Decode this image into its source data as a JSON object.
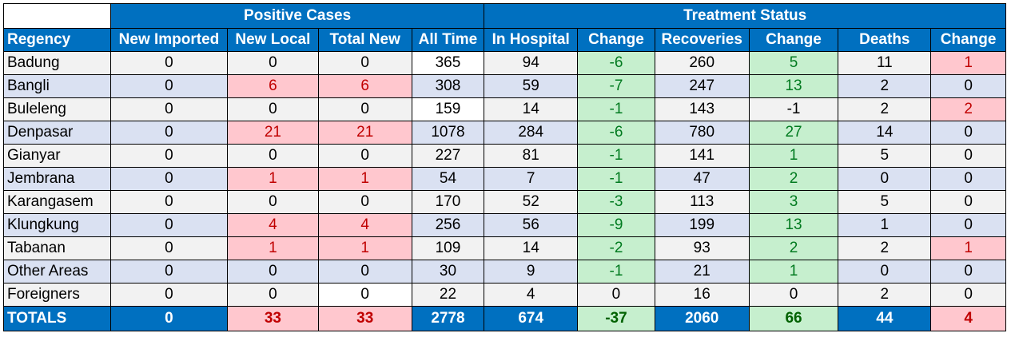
{
  "groups": {
    "positive": "Positive Cases",
    "treatment": "Treatment Status"
  },
  "columns": [
    "Regency",
    "New Imported",
    "New Local",
    "Total New",
    "All Time",
    "In Hospital",
    "Change",
    "Recoveries",
    "Change",
    "Deaths",
    "Change"
  ],
  "rows": [
    {
      "name": "Badung",
      "cells": [
        "0",
        "0",
        "0",
        "365",
        "94",
        "-6",
        "260",
        "5",
        "11",
        "1"
      ],
      "styles": [
        "",
        "",
        "",
        "white",
        "",
        "green",
        "",
        "green",
        "",
        "red"
      ]
    },
    {
      "name": "Bangli",
      "cells": [
        "0",
        "6",
        "6",
        "308",
        "59",
        "-7",
        "247",
        "13",
        "2",
        "0"
      ],
      "styles": [
        "",
        "red",
        "red",
        "",
        "",
        "green",
        "",
        "green",
        "",
        ""
      ]
    },
    {
      "name": "Buleleng",
      "cells": [
        "0",
        "0",
        "0",
        "159",
        "14",
        "-1",
        "143",
        "-1",
        "2",
        "2"
      ],
      "styles": [
        "",
        "",
        "",
        "white",
        "",
        "green",
        "",
        "",
        "",
        "red"
      ]
    },
    {
      "name": "Denpasar",
      "cells": [
        "0",
        "21",
        "21",
        "1078",
        "284",
        "-6",
        "780",
        "27",
        "14",
        "0"
      ],
      "styles": [
        "",
        "red",
        "red",
        "",
        "",
        "green",
        "",
        "green",
        "",
        ""
      ]
    },
    {
      "name": "Gianyar",
      "cells": [
        "0",
        "0",
        "0",
        "227",
        "81",
        "-1",
        "141",
        "1",
        "5",
        "0"
      ],
      "styles": [
        "",
        "",
        "",
        "",
        "",
        "green",
        "",
        "green",
        "",
        ""
      ]
    },
    {
      "name": "Jembrana",
      "cells": [
        "0",
        "1",
        "1",
        "54",
        "7",
        "-1",
        "47",
        "2",
        "0",
        "0"
      ],
      "styles": [
        "",
        "red",
        "red",
        "",
        "",
        "green",
        "",
        "green",
        "",
        ""
      ]
    },
    {
      "name": "Karangasem",
      "cells": [
        "0",
        "0",
        "0",
        "170",
        "52",
        "-3",
        "113",
        "3",
        "5",
        "0"
      ],
      "styles": [
        "",
        "",
        "",
        "",
        "",
        "green",
        "",
        "green",
        "",
        ""
      ]
    },
    {
      "name": "Klungkung",
      "cells": [
        "0",
        "4",
        "4",
        "256",
        "56",
        "-9",
        "199",
        "13",
        "1",
        "0"
      ],
      "styles": [
        "",
        "red",
        "red",
        "",
        "",
        "green",
        "",
        "green",
        "",
        ""
      ]
    },
    {
      "name": "Tabanan",
      "cells": [
        "0",
        "1",
        "1",
        "109",
        "14",
        "-2",
        "93",
        "2",
        "2",
        "1"
      ],
      "styles": [
        "",
        "red",
        "red",
        "",
        "",
        "green",
        "",
        "green",
        "",
        "red"
      ]
    },
    {
      "name": "Other Areas",
      "cells": [
        "0",
        "0",
        "0",
        "30",
        "9",
        "-1",
        "21",
        "1",
        "0",
        "0"
      ],
      "styles": [
        "",
        "",
        "",
        "",
        "",
        "green",
        "",
        "green",
        "",
        ""
      ]
    },
    {
      "name": "Foreigners",
      "cells": [
        "0",
        "0",
        "0",
        "22",
        "4",
        "0",
        "16",
        "0",
        "2",
        "0"
      ],
      "styles": [
        "",
        "",
        "white",
        "",
        "",
        "",
        "",
        "",
        "",
        ""
      ]
    }
  ],
  "totals": {
    "name": "TOTALS",
    "cells": [
      "0",
      "33",
      "33",
      "2778",
      "674",
      "-37",
      "2060",
      "66",
      "44",
      "4"
    ],
    "styles": [
      "",
      "red",
      "red",
      "",
      "",
      "green",
      "",
      "green",
      "",
      "red"
    ]
  },
  "colors": {
    "header_blue": "#0070c0",
    "row_gray": "#f2f2f2",
    "row_blue": "#dae1f2",
    "pink": "#ffc7ce",
    "green": "#c6efce"
  }
}
